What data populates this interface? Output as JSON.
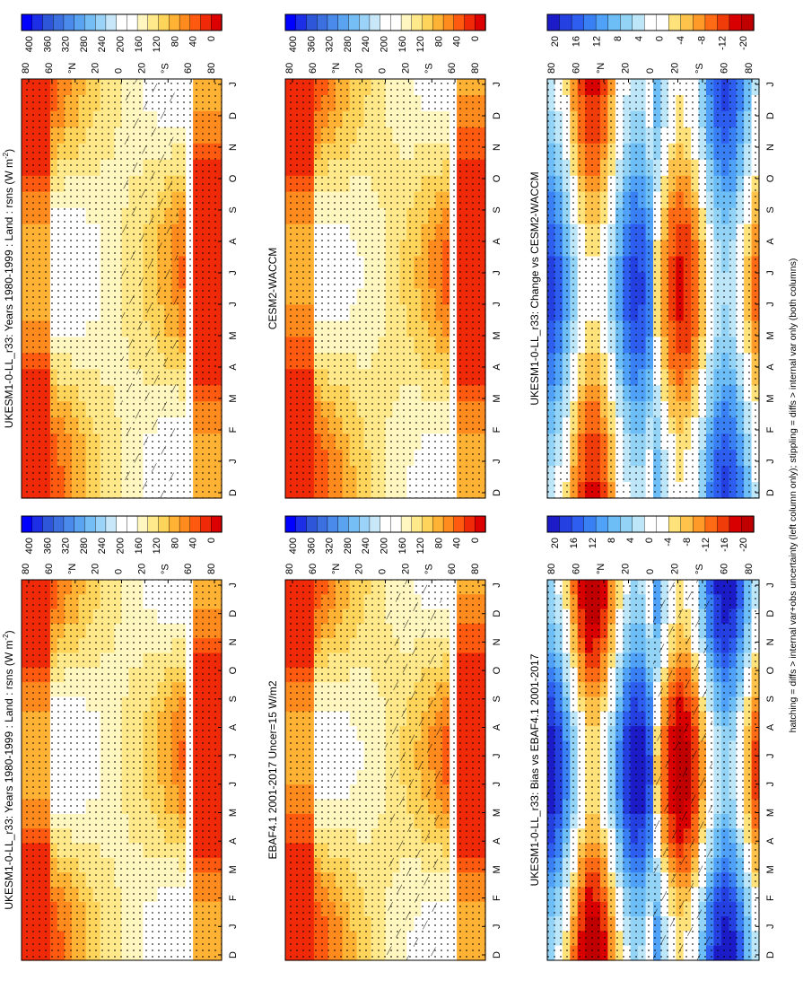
{
  "figure": {
    "footnote": "hatching = diffs > internal var+obs uncertainty (left column only); stippling = diffs > internal var only (both columns)"
  },
  "colors": {
    "abs_palette": [
      "#0000ff",
      "#1c2ee6",
      "#2e56d8",
      "#3c6fe0",
      "#4a8aea",
      "#5aa3f0",
      "#74bdf5",
      "#9ad3f7",
      "#c8e8fa",
      "#ffffff",
      "#ffffff",
      "#fff6c0",
      "#ffe98a",
      "#ffd45a",
      "#ffb234",
      "#ff8a1e",
      "#ff5a10",
      "#f02a08",
      "#dd0000"
    ],
    "diff_palette": [
      "#1b1bc8",
      "#2540e0",
      "#2e5ef0",
      "#3a80f5",
      "#4fa2f7",
      "#6dbdf7",
      "#93d3f6",
      "#bde6f8",
      "#ffffff",
      "#ffffff",
      "#ffe27a",
      "#ffc24a",
      "#ff9a28",
      "#ff6a14",
      "#f03c08",
      "#d80000",
      "#c00000"
    ]
  },
  "chart_data": [
    {
      "type": "heatmap",
      "title": "UKESM1-0-LL_r33: Years 1980-1999 : Land : rsns (W m",
      "title_sup": "-2",
      "title_close": ")",
      "x": [
        "D",
        "J",
        "F",
        "M",
        "A",
        "M",
        "J",
        "J",
        "A",
        "S",
        "O",
        "N",
        "D",
        "J"
      ],
      "y": [
        "80",
        "60",
        "°N",
        "20",
        "0",
        "20",
        "°S",
        "60",
        "80"
      ],
      "colorbar": [
        "400",
        "360",
        "320",
        "280",
        "240",
        "200",
        "160",
        "120",
        "80",
        "40",
        "0"
      ],
      "overlay": "hatching and stippling"
    },
    {
      "type": "heatmap",
      "title": "UKESM1-0-LL_r33: Years 1980-1999 : Land : rsns (W m",
      "title_sup": "-2",
      "title_close": ")",
      "x": [
        "D",
        "J",
        "F",
        "M",
        "A",
        "M",
        "J",
        "J",
        "A",
        "S",
        "O",
        "N",
        "D",
        "J"
      ],
      "y": [
        "80",
        "60",
        "°N",
        "20",
        "0",
        "20",
        "°S",
        "60",
        "80"
      ],
      "colorbar": [
        "400",
        "360",
        "320",
        "280",
        "240",
        "200",
        "160",
        "120",
        "80",
        "40",
        "0"
      ],
      "overlay": "stippling"
    },
    {
      "type": "heatmap",
      "title": "EBAF4.1 2001-2017 Uncer=15 W/m2",
      "x": [
        "D",
        "J",
        "F",
        "M",
        "A",
        "M",
        "J",
        "J",
        "A",
        "S",
        "O",
        "N",
        "D",
        "J"
      ],
      "y": [
        "80",
        "60",
        "°N",
        "20",
        "0",
        "20",
        "°S",
        "60",
        "80"
      ],
      "colorbar": [
        "400",
        "360",
        "320",
        "280",
        "240",
        "200",
        "160",
        "120",
        "80",
        "40",
        "0"
      ],
      "overlay": "hatching and stippling"
    },
    {
      "type": "heatmap",
      "title": "CESM2-WACCM",
      "x": [
        "D",
        "J",
        "F",
        "M",
        "A",
        "M",
        "J",
        "J",
        "A",
        "S",
        "O",
        "N",
        "D",
        "J"
      ],
      "y": [
        "80",
        "60",
        "°N",
        "20",
        "0",
        "20",
        "°S",
        "60",
        "80"
      ],
      "colorbar": [
        "400",
        "360",
        "320",
        "280",
        "240",
        "200",
        "160",
        "120",
        "80",
        "40",
        "0"
      ],
      "overlay": "stippling"
    },
    {
      "type": "heatmap",
      "title": "UKESM1-0-LL_r33: Bias vs EBAF4.1 2001-2017",
      "x": [
        "D",
        "J",
        "F",
        "M",
        "A",
        "M",
        "J",
        "J",
        "A",
        "S",
        "O",
        "N",
        "D",
        "J"
      ],
      "y": [
        "80",
        "60",
        "°N",
        "20",
        "0",
        "20",
        "°S",
        "60",
        "80"
      ],
      "colorbar": [
        "20",
        "16",
        "12",
        "8",
        "4",
        "0",
        "-4",
        "-8",
        "-12",
        "-16",
        "-20"
      ],
      "overlay": "hatching and stippling"
    },
    {
      "type": "heatmap",
      "title": "UKESM1-0-LL_r33: Change vs CESM2-WACCM",
      "x": [
        "D",
        "J",
        "F",
        "M",
        "A",
        "M",
        "J",
        "J",
        "A",
        "S",
        "O",
        "N",
        "D",
        "J"
      ],
      "y": [
        "80",
        "60",
        "°N",
        "20",
        "0",
        "20",
        "°S",
        "60",
        "80"
      ],
      "colorbar": [
        "20",
        "16",
        "12",
        "8",
        "4",
        "0",
        "-4",
        "-8",
        "-12",
        "-20"
      ],
      "overlay": "stippling"
    }
  ]
}
